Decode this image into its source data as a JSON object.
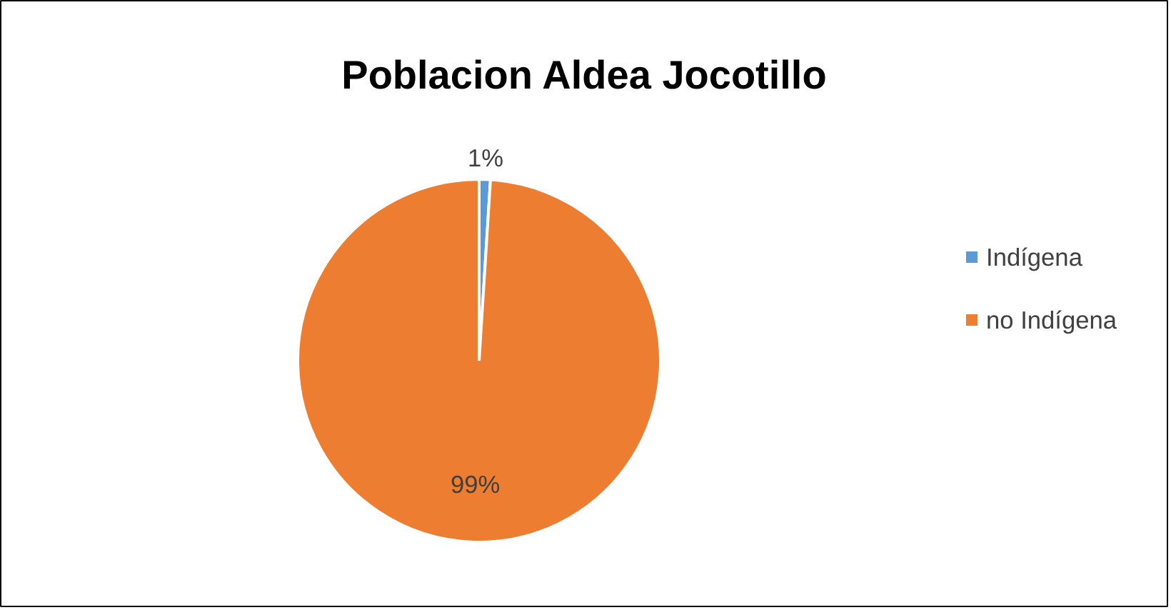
{
  "chart_data": {
    "type": "pie",
    "title": "Poblacion Aldea Jocotillo",
    "categories": [
      "Indígena",
      "no Indígena"
    ],
    "values": [
      1,
      99
    ],
    "value_labels": [
      "1%",
      "99%"
    ],
    "colors": [
      "#5b9bd5",
      "#ed7d31"
    ],
    "legend": "right"
  }
}
